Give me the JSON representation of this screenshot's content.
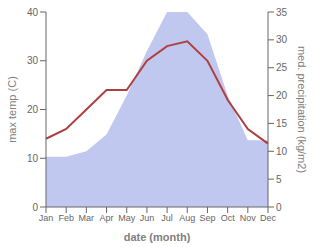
{
  "chart_data": {
    "type": "line",
    "categories": [
      "Jan",
      "Feb",
      "Mar",
      "Apr",
      "May",
      "Jun",
      "Jul",
      "Aug",
      "Sep",
      "Oct",
      "Nov",
      "Dec"
    ],
    "series": [
      {
        "type": "area",
        "axis": "y2",
        "color": "#c0c8f0",
        "values": [
          9,
          9,
          10,
          13,
          20,
          28,
          35,
          35,
          31,
          20,
          12,
          12
        ]
      },
      {
        "type": "line",
        "color": "#b04040",
        "values": [
          14,
          16,
          20,
          24,
          24,
          30,
          33,
          34,
          30,
          22,
          16,
          13
        ]
      }
    ],
    "xlabel": "date (month)",
    "ylabel": "max temp (C)",
    "y2label": "med. precipitation (kg/m2)",
    "ylim": [
      0,
      40
    ],
    "yticks": [
      0,
      10,
      20,
      30,
      40
    ],
    "y2lim": [
      0,
      35
    ],
    "y2ticks": [
      0,
      5,
      10,
      15,
      20,
      25,
      30,
      35
    ],
    "grid": false
  }
}
